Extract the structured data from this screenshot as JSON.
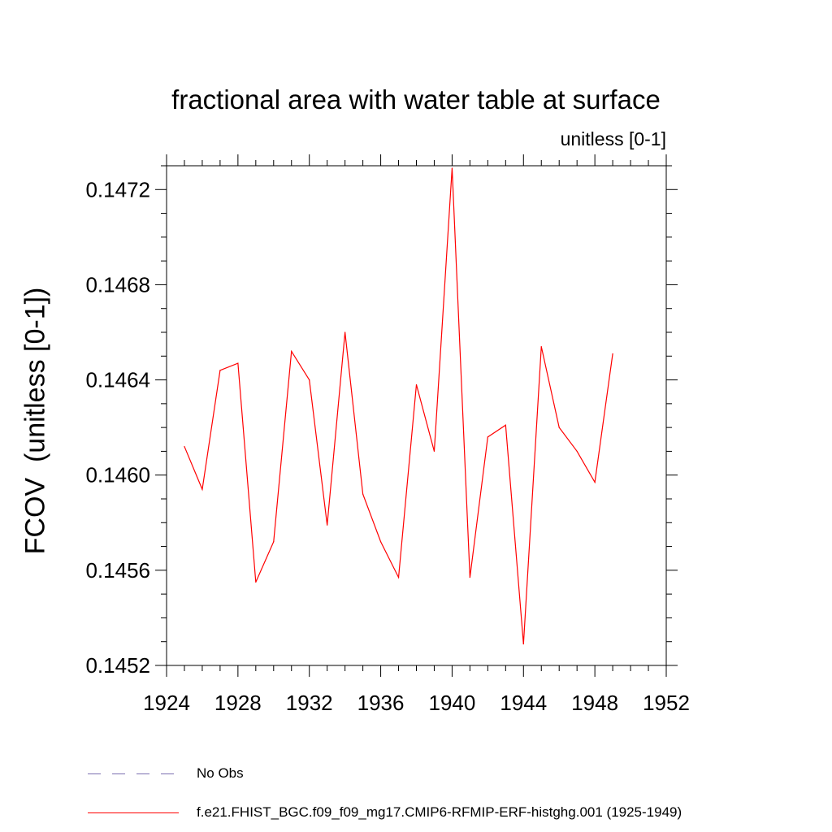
{
  "chart_data": {
    "type": "line",
    "title": "fractional area with water table at surface",
    "subtitle": "unitless [0-1]",
    "ylabel": "FCOV  (unitless [0-1])",
    "xlabel": "",
    "xlim": [
      1924,
      1952
    ],
    "ylim": [
      0.1452,
      0.1473
    ],
    "x_ticks": [
      "1924",
      "1928",
      "1932",
      "1936",
      "1940",
      "1944",
      "1948",
      "1952"
    ],
    "y_ticks": [
      "0.1452",
      "0.1456",
      "0.1460",
      "0.1464",
      "0.1468",
      "0.1472"
    ],
    "grid": false,
    "legend_placement": "bottom",
    "series": [
      {
        "name": "f.e21.FHIST_BGC.f09_f09_mg17.CMIP6-RFMIP-ERF-histghg.001 (1925-1949)",
        "color": "#ff0000",
        "style": "solid",
        "x": [
          1925,
          1926,
          1927,
          1928,
          1929,
          1930,
          1931,
          1932,
          1933,
          1934,
          1935,
          1936,
          1937,
          1938,
          1939,
          1940,
          1941,
          1942,
          1943,
          1944,
          1945,
          1946,
          1947,
          1948,
          1949
        ],
        "y": [
          0.14612,
          0.14594,
          0.14644,
          0.14647,
          0.14555,
          0.14572,
          0.14652,
          0.1464,
          0.14579,
          0.1466,
          0.14592,
          0.14572,
          0.14557,
          0.14638,
          0.1461,
          0.14729,
          0.14557,
          0.14616,
          0.14621,
          0.14529,
          0.14654,
          0.1462,
          0.1461,
          0.14597,
          0.14651
        ]
      }
    ],
    "legend": [
      {
        "label": "No Obs",
        "color": "#7b6fb0",
        "style": "dashed"
      },
      {
        "label": "f.e21.FHIST_BGC.f09_f09_mg17.CMIP6-RFMIP-ERF-histghg.001 (1925-1949)",
        "color": "#ff0000",
        "style": "solid"
      }
    ]
  }
}
